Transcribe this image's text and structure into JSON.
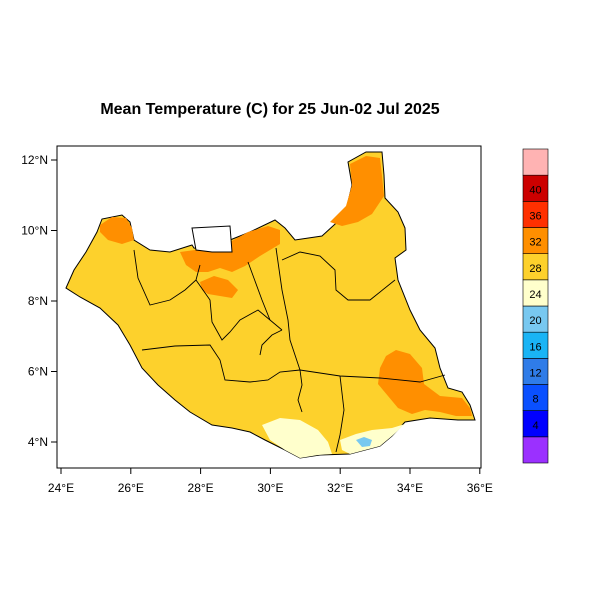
{
  "title": "Mean Temperature (C) for 25 Jun-02 Jul 2025",
  "x_axis": {
    "ticks": [
      {
        "value": 24,
        "label": "24°E"
      },
      {
        "value": 26,
        "label": "26°E"
      },
      {
        "value": 28,
        "label": "28°E"
      },
      {
        "value": 30,
        "label": "30°E"
      },
      {
        "value": 32,
        "label": "32°E"
      },
      {
        "value": 34,
        "label": "34°E"
      },
      {
        "value": 36,
        "label": "36°E"
      }
    ]
  },
  "y_axis": {
    "ticks": [
      {
        "value": 4,
        "label": "4°N"
      },
      {
        "value": 6,
        "label": "6°N"
      },
      {
        "value": 8,
        "label": "8°N"
      },
      {
        "value": 10,
        "label": "10°N"
      },
      {
        "value": 12,
        "label": "12°N"
      }
    ]
  },
  "legend": {
    "placement": "right",
    "bins": [
      {
        "color": "#9b30ff"
      },
      {
        "color": "#0000ff",
        "label": "4"
      },
      {
        "color": "#0a50ff",
        "label": "8"
      },
      {
        "color": "#2f7ce8",
        "label": "12"
      },
      {
        "color": "#1ab4f5",
        "label": "16"
      },
      {
        "color": "#78c8f0",
        "label": "20"
      },
      {
        "color": "#ffffcc",
        "label": "24"
      },
      {
        "color": "#fdd12c",
        "label": "28"
      },
      {
        "color": "#ff8f00",
        "label": "32"
      },
      {
        "color": "#ff3000",
        "label": "36"
      },
      {
        "color": "#cc0000",
        "label": "40"
      },
      {
        "color": "#ffb3b3"
      }
    ]
  },
  "colors": {
    "warm_24_28": "#fdd12c",
    "hot_28_32": "#ff8f00",
    "mild_20_24": "#ffffcc",
    "cool_16_20": "#78c8f0",
    "border": "#000000"
  }
}
